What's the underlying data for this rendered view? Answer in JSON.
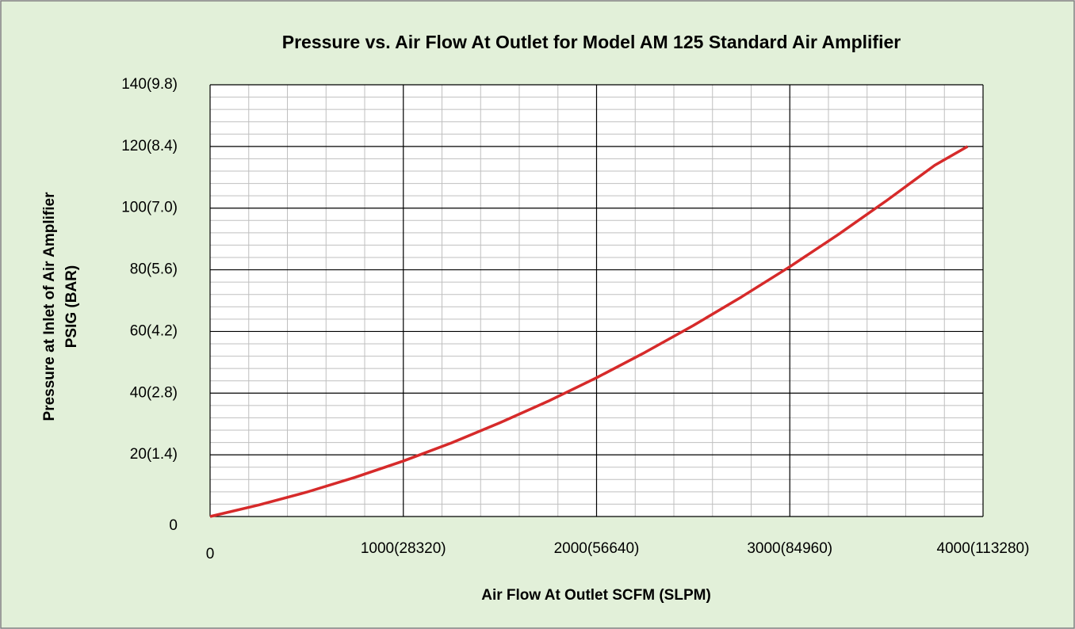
{
  "chart_data": {
    "type": "line",
    "title": "Pressure vs. Air Flow At Outlet for Model AM 125 Standard Air Amplifier",
    "x_label": "Air Flow At Outlet SCFM (SLPM)",
    "y_label": [
      "Pressure at Inlet of Air Amplifier",
      "PSIG (BAR)"
    ],
    "x": [
      0,
      250,
      500,
      750,
      1000,
      1250,
      1500,
      1750,
      2000,
      2250,
      2500,
      2750,
      3000,
      3250,
      3500,
      3750,
      3920
    ],
    "series": [
      {
        "name": "AM 125",
        "color": "#d62a2a",
        "values": [
          0,
          3.7,
          7.9,
          12.7,
          18,
          23.9,
          30.4,
          37.4,
          45,
          53.2,
          61.9,
          71.2,
          81,
          91.4,
          102.4,
          113.9,
          120
        ]
      }
    ],
    "xlim": [
      0,
      4000
    ],
    "xticks": [
      0,
      {
        "value": 1000,
        "label": "1000(28320)"
      },
      {
        "value": 2000,
        "label": "2000(56640)"
      },
      {
        "value": 3000,
        "label": "3000(84960)"
      },
      {
        "value": 4000,
        "label": "4000(113280)"
      }
    ],
    "ylim": [
      0,
      140
    ],
    "yticks": [
      0,
      {
        "value": 20,
        "label": "20(1.4)"
      },
      {
        "value": 40,
        "label": "40(2.8)"
      },
      {
        "value": 60,
        "label": "60(4.2)"
      },
      {
        "value": 80,
        "label": "80(5.6)"
      },
      {
        "value": 100,
        "label": "100(7.0)"
      },
      {
        "value": 120,
        "label": "120(8.4)"
      },
      {
        "value": 140,
        "label": "140(9.8)"
      }
    ],
    "grid": true,
    "background": "#e2f0d9"
  }
}
